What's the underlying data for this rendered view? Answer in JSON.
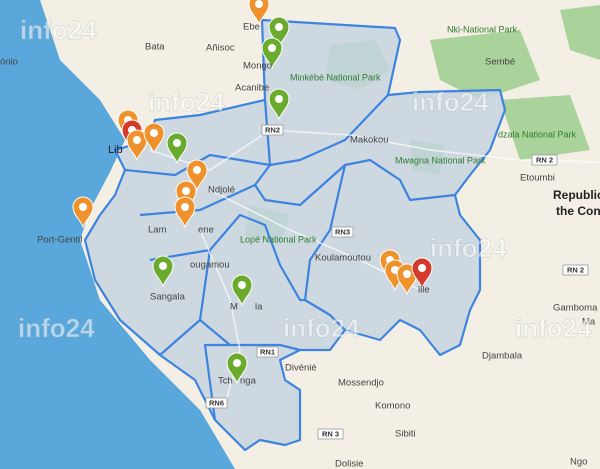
{
  "map": {
    "watermark": "info24",
    "labels": [
      "Ebe",
      "Bata",
      "Añisoc",
      "ónio",
      "Mongo",
      "Acanibe",
      "Nki-National Park",
      "Sembé",
      "Minkébé National Park",
      "Lib",
      "Makokou",
      "dzala National Park",
      "Mwagna National Park",
      "Etoumbi",
      "Republic",
      "the Con",
      "Ndjolé",
      "Lam",
      "ene",
      "Port-Gentil",
      "Lopé National Park",
      "Koulamoutou",
      "ougamou",
      "Sangala",
      "M",
      "la",
      "ille",
      "Divénié",
      "Mossendjo",
      "Gamboma",
      "Ma",
      "Djambala",
      "Tch",
      "nga",
      "Komono",
      "Sibiti",
      "Dolisie",
      "Ngo"
    ],
    "roads": [
      "RN2",
      "RN 2",
      "RN3",
      "RN 2",
      "RN1",
      "RN6",
      "RN 3"
    ]
  }
}
